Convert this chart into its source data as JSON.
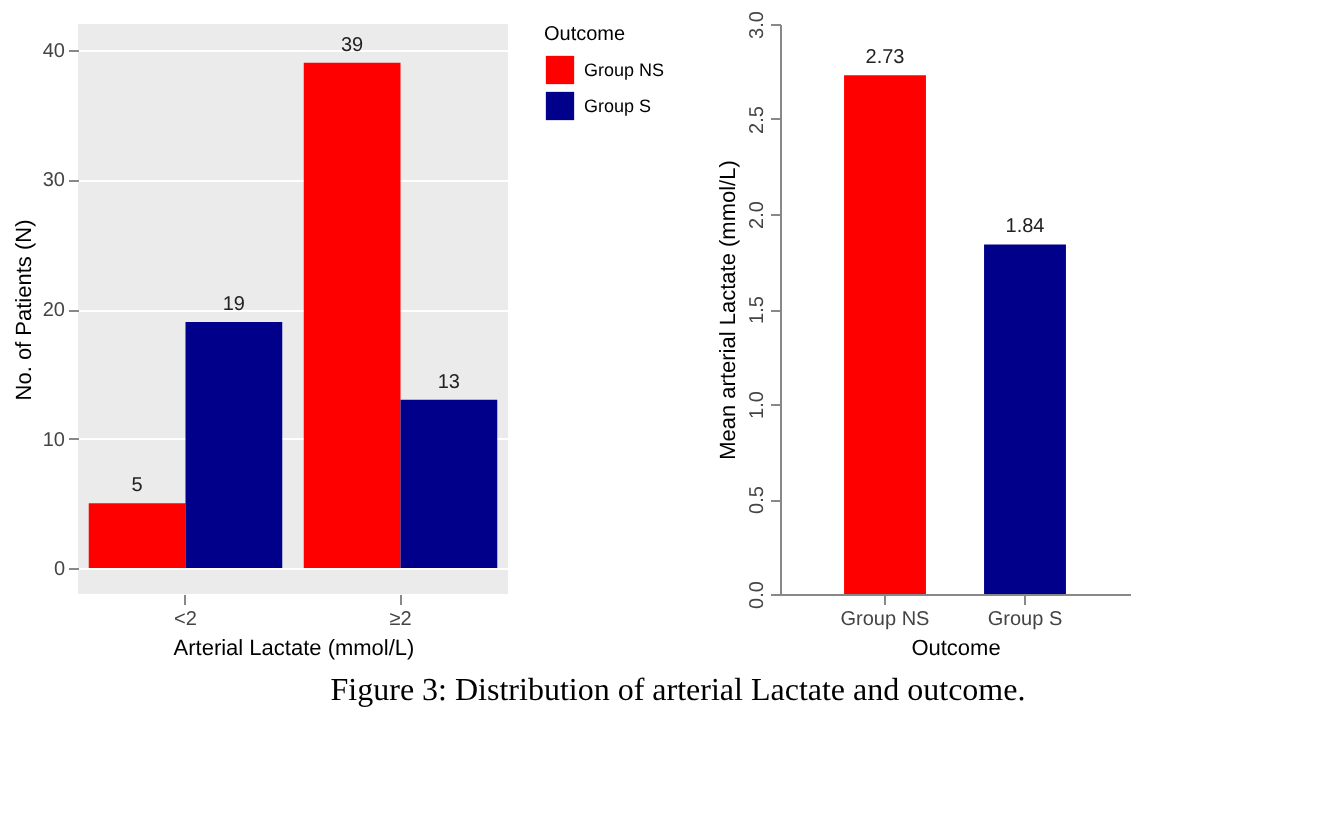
{
  "chart_data": [
    {
      "type": "bar",
      "categories": [
        "<2",
        "≥2"
      ],
      "xlabel": "Arterial Lactate (mmol/L)",
      "ylabel": "No. of Patients (N)",
      "legend_title": "Outcome",
      "series": [
        {
          "name": "Group NS",
          "color": "#ff0000",
          "values": [
            5,
            39
          ]
        },
        {
          "name": "Group S",
          "color": "#00008b",
          "values": [
            19,
            13
          ]
        }
      ],
      "ylim": [
        -2,
        42
      ],
      "yticks": [
        0,
        10,
        20,
        30,
        40
      ],
      "grid": true,
      "legend": "right",
      "data_labels": true,
      "annotations": [
        "Figure 3: Distribution of arterial Lactate and outcome."
      ]
    },
    {
      "type": "bar",
      "categories": [
        "Group NS",
        "Group S"
      ],
      "xlabel": "Outcome",
      "ylabel": "Mean arterial Lactate (mmol/L)",
      "values": [
        2.73,
        1.84
      ],
      "colors": [
        "#ff0000",
        "#00008b"
      ],
      "ylim": [
        0,
        3
      ],
      "yticks": [
        {
          "value": 0,
          "label": "0.0"
        },
        0.5,
        {
          "value": 1,
          "label": "1.0"
        },
        1.5,
        {
          "value": 2,
          "label": "2.0"
        },
        2.5,
        {
          "value": 3,
          "label": "3.0"
        }
      ],
      "data_labels": true
    }
  ]
}
